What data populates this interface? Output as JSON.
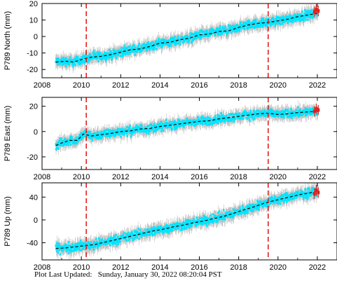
{
  "footer": {
    "label": "Plot Last Updated:",
    "timestamp": "Sunday, January 30, 2022 08:20:04 PST"
  },
  "colors": {
    "daily_points": "#00e5ff",
    "error_bars": "#b4b4b4",
    "rapid_points": "#e0201e",
    "model_line": "#000000",
    "event_lines": "#e0201e"
  },
  "chart_data": [
    {
      "type": "scatter",
      "station": "P789",
      "component": "North",
      "ylabel": "P789 North (mm)",
      "xlim": [
        2008,
        2023
      ],
      "ylim": [
        -25,
        20
      ],
      "x_ticks": [
        2008,
        2010,
        2012,
        2014,
        2016,
        2018,
        2020,
        2022
      ],
      "y_ticks": [
        -20,
        -10,
        0,
        10,
        20
      ],
      "event_lines": [
        2010.25,
        2019.5
      ],
      "model": {
        "x": [
          2008.7,
          2009.2,
          2009.6,
          2010.0,
          2010.5,
          2011.0,
          2011.5,
          2012.0,
          2012.5,
          2013.0,
          2013.5,
          2014.0,
          2014.5,
          2015.0,
          2015.5,
          2016.0,
          2016.5,
          2017.0,
          2017.5,
          2018.0,
          2018.5,
          2019.0,
          2019.5,
          2020.0,
          2020.5,
          2021.0,
          2021.5,
          2022.0
        ],
        "y": [
          -15.5,
          -15,
          -15.5,
          -14,
          -12.5,
          -12,
          -11,
          -9.5,
          -8,
          -7.5,
          -6,
          -4,
          -3.5,
          -2,
          -1,
          1,
          1.5,
          3,
          3.5,
          5.5,
          7,
          8,
          8.5,
          9.5,
          10.5,
          12,
          13,
          14
        ]
      },
      "rapid": {
        "x": [
          2021.85,
          2021.95,
          2022.05
        ],
        "y": [
          15,
          16.5,
          15.5
        ]
      }
    },
    {
      "type": "scatter",
      "station": "P789",
      "component": "East",
      "ylabel": "P789 East (mm)",
      "xlim": [
        2008,
        2023
      ],
      "ylim": [
        -30,
        27
      ],
      "x_ticks": [
        2008,
        2010,
        2012,
        2014,
        2016,
        2018,
        2020,
        2022
      ],
      "y_ticks": [
        -20,
        0,
        20
      ],
      "event_lines": [
        2010.25,
        2019.5
      ],
      "model": {
        "x": [
          2008.7,
          2009.0,
          2009.4,
          2009.8,
          2010.1,
          2010.5,
          2011.0,
          2011.5,
          2012.0,
          2012.5,
          2013.0,
          2013.5,
          2014.0,
          2014.5,
          2015.0,
          2015.5,
          2016.0,
          2016.5,
          2017.0,
          2017.5,
          2018.0,
          2018.5,
          2019.0,
          2019.5,
          2020.0,
          2020.5,
          2021.0,
          2021.5,
          2022.0
        ],
        "y": [
          -11,
          -9,
          -7,
          -7,
          -2,
          -3.5,
          -2.5,
          -1.5,
          0,
          0.5,
          2,
          2.5,
          4,
          5,
          6,
          7,
          8,
          8.5,
          10,
          11,
          12,
          13,
          14,
          14.5,
          13.5,
          14,
          15,
          15.5,
          16
        ]
      },
      "rapid": {
        "x": [
          2021.85,
          2021.95,
          2022.05
        ],
        "y": [
          16,
          18,
          17
        ]
      }
    },
    {
      "type": "scatter",
      "station": "P789",
      "component": "Up",
      "ylabel": "P789 Up (mm)",
      "xlim": [
        2008,
        2023
      ],
      "ylim": [
        -70,
        65
      ],
      "x_ticks": [
        2008,
        2010,
        2012,
        2014,
        2016,
        2018,
        2020,
        2022
      ],
      "y_ticks": [
        -40,
        0,
        40
      ],
      "event_lines": [
        2010.25,
        2019.5
      ],
      "model": {
        "x": [
          2008.7,
          2009.2,
          2009.7,
          2010.2,
          2010.7,
          2011.2,
          2011.7,
          2012.2,
          2012.7,
          2013.2,
          2013.7,
          2014.2,
          2014.7,
          2015.2,
          2015.7,
          2016.2,
          2016.7,
          2017.2,
          2017.7,
          2018.2,
          2018.7,
          2019.2,
          2019.7,
          2020.2,
          2020.7,
          2021.2,
          2021.7,
          2022.0
        ],
        "y": [
          -50,
          -49,
          -47,
          -45,
          -43,
          -39,
          -35,
          -31,
          -27,
          -23,
          -19,
          -16,
          -12,
          -9,
          -5,
          -2,
          2,
          6,
          11,
          17,
          22,
          28,
          33,
          37,
          41,
          45,
          48,
          50
        ]
      },
      "rapid": {
        "x": [
          2021.85,
          2021.95,
          2022.05
        ],
        "y": [
          46,
          52,
          48
        ]
      }
    }
  ]
}
